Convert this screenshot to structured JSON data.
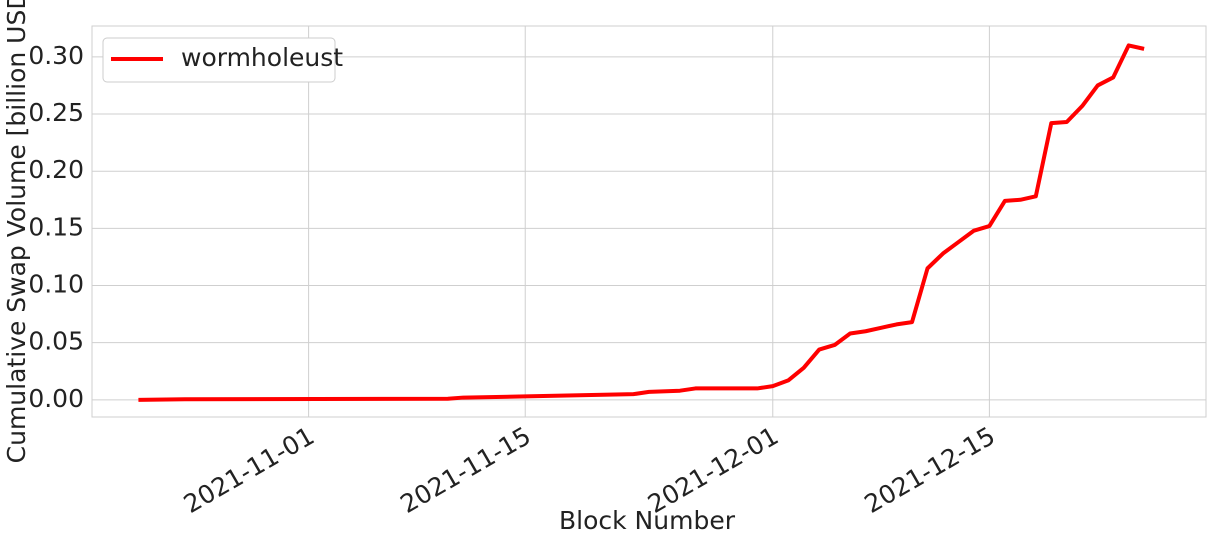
{
  "chart_data": {
    "type": "line",
    "xlabel": "Block Number",
    "ylabel": "Cumulative Swap Volume [billion USD]",
    "x": [
      "2021-10-21",
      "2021-10-24",
      "2021-11-10",
      "2021-11-11",
      "2021-11-15",
      "2021-11-22",
      "2021-11-23",
      "2021-11-25",
      "2021-11-26",
      "2021-11-30",
      "2021-12-01",
      "2021-12-02",
      "2021-12-03",
      "2021-12-04",
      "2021-12-05",
      "2021-12-06",
      "2021-12-07",
      "2021-12-08",
      "2021-12-09",
      "2021-12-10",
      "2021-12-11",
      "2021-12-12",
      "2021-12-13",
      "2021-12-14",
      "2021-12-15",
      "2021-12-16",
      "2021-12-17",
      "2021-12-18",
      "2021-12-19",
      "2021-12-20",
      "2021-12-21",
      "2021-12-22",
      "2021-12-23",
      "2021-12-24",
      "2021-12-25"
    ],
    "series": [
      {
        "name": "wormholeust",
        "color": "#ff0000",
        "values": [
          0,
          0.0005,
          0.001,
          0.002,
          0.003,
          0.005,
          0.007,
          0.008,
          0.01,
          0.01,
          0.012,
          0.017,
          0.028,
          0.044,
          0.048,
          0.058,
          0.06,
          0.063,
          0.066,
          0.068,
          0.115,
          0.128,
          0.138,
          0.148,
          0.152,
          0.174,
          0.175,
          0.178,
          0.242,
          0.243,
          0.257,
          0.275,
          0.282,
          0.31,
          0.307
        ]
      }
    ],
    "xlim": [
      "2021-10-18",
      "2021-12-29"
    ],
    "xticks": [
      "2021-11-01",
      "2021-11-15",
      "2021-12-01",
      "2021-12-15"
    ],
    "ylim": [
      -0.015,
      0.327
    ],
    "yticks": [
      {
        "value": 0,
        "label": "0.00"
      },
      {
        "value": 0.05,
        "label": "0.05"
      },
      {
        "value": 0.1,
        "label": "0.10"
      },
      {
        "value": 0.15,
        "label": "0.15"
      },
      {
        "value": 0.2,
        "label": "0.20"
      },
      {
        "value": 0.25,
        "label": "0.25"
      },
      {
        "value": 0.3,
        "label": "0.30"
      }
    ],
    "grid": true,
    "legend": "upper left"
  }
}
